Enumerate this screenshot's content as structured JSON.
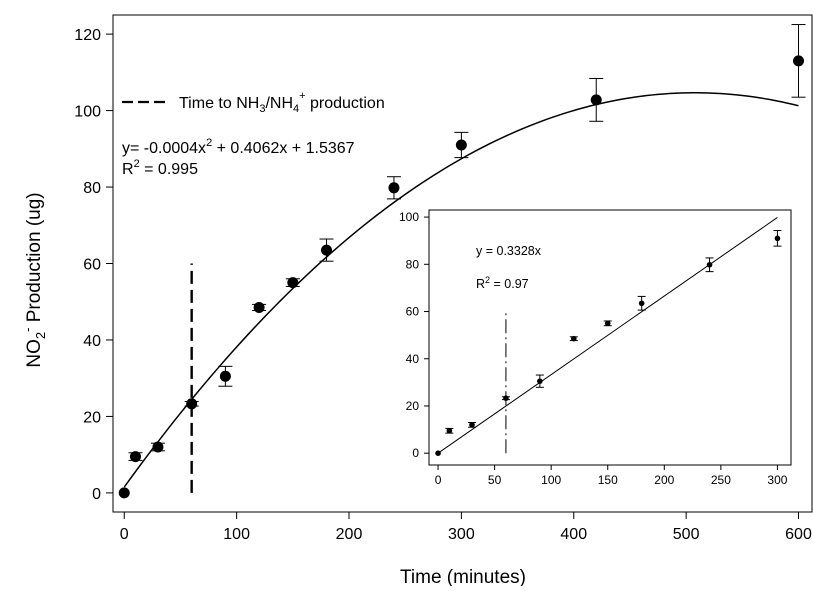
{
  "chart_data": [
    {
      "type": "scatter",
      "xlabel": "Time (minutes)",
      "ylabel": "NO2- Production (ug)",
      "xlim": [
        -10,
        612
      ],
      "ylim": [
        -5,
        125
      ],
      "xticks": [
        0,
        100,
        200,
        300,
        400,
        500,
        600
      ],
      "yticks": [
        0,
        20,
        40,
        60,
        80,
        100,
        120
      ],
      "grid": false,
      "legend": {
        "position": "top-left",
        "entries": [
          {
            "label": "Time to NH3/NH4+ production",
            "style": "dashed"
          }
        ]
      },
      "series": [
        {
          "marker": "filled-circle",
          "points": [
            {
              "x": 0,
              "y": 0,
              "err": 0
            },
            {
              "x": 10,
              "y": 9.5,
              "err": 1.0
            },
            {
              "x": 30,
              "y": 12,
              "err": 1.0
            },
            {
              "x": 60,
              "y": 23.3,
              "err": 0.6
            },
            {
              "x": 90,
              "y": 30.5,
              "err": 2.6
            },
            {
              "x": 120,
              "y": 48.5,
              "err": 0.8
            },
            {
              "x": 150,
              "y": 55,
              "err": 1.0
            },
            {
              "x": 180,
              "y": 63.5,
              "err": 2.9
            },
            {
              "x": 240,
              "y": 79.8,
              "err": 2.9
            },
            {
              "x": 300,
              "y": 91,
              "err": 3.3
            },
            {
              "x": 420,
              "y": 102.8,
              "err": 5.6
            },
            {
              "x": 600,
              "y": 113,
              "err": 9.5
            }
          ]
        }
      ],
      "fit": {
        "kind": "quadratic",
        "a": -0.0004,
        "b": 0.4062,
        "c": 1.5367,
        "x_range": [
          0,
          600
        ]
      },
      "vline": {
        "x": 60,
        "y_range": [
          0,
          60
        ],
        "style": "dashed"
      },
      "annotations": {
        "equation": "y= -0.0004x² + 0.4062x + 1.5367",
        "r2": "R² = 0.995"
      }
    },
    {
      "type": "scatter",
      "role": "inset",
      "xlim": [
        -8,
        312
      ],
      "ylim": [
        -5,
        103
      ],
      "xticks": [
        0,
        50,
        100,
        150,
        200,
        250,
        300
      ],
      "yticks": [
        0,
        20,
        40,
        60,
        80,
        100
      ],
      "grid": false,
      "series": [
        {
          "marker": "small-filled-circle",
          "points": [
            {
              "x": 0,
              "y": 0,
              "err": 0
            },
            {
              "x": 10,
              "y": 9.5,
              "err": 1.0
            },
            {
              "x": 30,
              "y": 12,
              "err": 1.0
            },
            {
              "x": 60,
              "y": 23.3,
              "err": 0.6
            },
            {
              "x": 90,
              "y": 30.5,
              "err": 2.6
            },
            {
              "x": 120,
              "y": 48.5,
              "err": 0.8
            },
            {
              "x": 150,
              "y": 55,
              "err": 1.0
            },
            {
              "x": 180,
              "y": 63.5,
              "err": 2.9
            },
            {
              "x": 240,
              "y": 79.8,
              "err": 2.9
            },
            {
              "x": 300,
              "y": 91,
              "err": 3.3
            }
          ]
        }
      ],
      "fit": {
        "kind": "linear",
        "slope": 0.3328,
        "intercept": 0,
        "x_range": [
          0,
          300
        ]
      },
      "vline": {
        "x": 60,
        "y_range": [
          0,
          60
        ],
        "style": "dash-dot"
      },
      "annotations": {
        "equation": "y = 0.3328x",
        "r2": "R² = 0.97"
      }
    }
  ]
}
